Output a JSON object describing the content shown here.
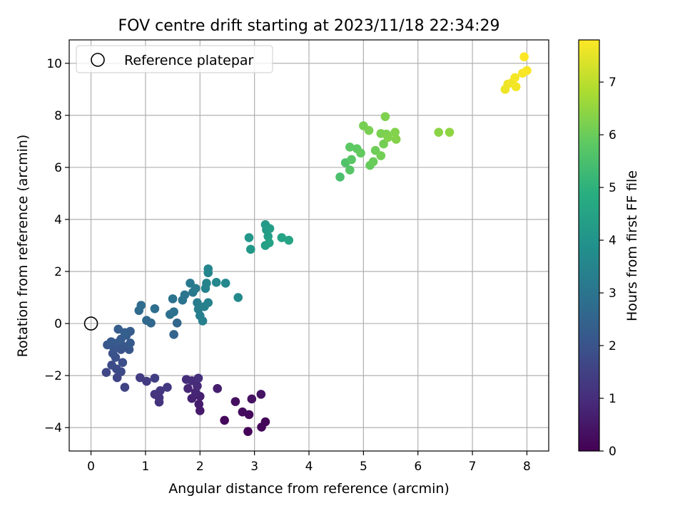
{
  "chart_data": {
    "type": "scatter",
    "title": "FOV centre drift starting at 2023/11/18 22:34:29",
    "xlabel": "Angular distance from reference (arcmin)",
    "ylabel": "Rotation from reference (arcmin)",
    "xlim": [
      -0.4,
      8.4
    ],
    "ylim": [
      -4.9,
      10.9
    ],
    "xticks": [
      "0",
      "1",
      "2",
      "3",
      "4",
      "5",
      "6",
      "7",
      "8"
    ],
    "yticks": [
      "-4",
      "-2",
      "0",
      "2",
      "4",
      "6",
      "8",
      "10"
    ],
    "grid": true,
    "legend": {
      "placement": "upper-left",
      "entries": [
        "Reference platepar"
      ]
    },
    "reference_point": {
      "x": 0,
      "y": 0,
      "label": "Reference platepar"
    },
    "colorbar": {
      "label": "Hours from first FF file",
      "range": [
        0,
        7.8
      ],
      "ticks": [
        "0",
        "1",
        "2",
        "3",
        "4",
        "5",
        "6",
        "7"
      ],
      "colormap": "viridis"
    },
    "points": [
      {
        "x": 2.88,
        "y": -4.15,
        "h": 0.05
      },
      {
        "x": 3.13,
        "y": -3.98,
        "h": 0.1
      },
      {
        "x": 3.2,
        "y": -3.78,
        "h": 0.12
      },
      {
        "x": 2.45,
        "y": -3.72,
        "h": 0.15
      },
      {
        "x": 2.9,
        "y": -3.5,
        "h": 0.2
      },
      {
        "x": 2.78,
        "y": -3.4,
        "h": 0.25
      },
      {
        "x": 2.65,
        "y": -3.0,
        "h": 0.3
      },
      {
        "x": 2.95,
        "y": -2.9,
        "h": 0.35
      },
      {
        "x": 3.12,
        "y": -2.72,
        "h": 0.4
      },
      {
        "x": 2.0,
        "y": -3.35,
        "h": 0.55
      },
      {
        "x": 1.98,
        "y": -3.1,
        "h": 0.6
      },
      {
        "x": 2.32,
        "y": -2.5,
        "h": 0.65
      },
      {
        "x": 2.0,
        "y": -2.8,
        "h": 0.7
      },
      {
        "x": 1.85,
        "y": -2.88,
        "h": 0.75
      },
      {
        "x": 1.92,
        "y": -2.65,
        "h": 0.8
      },
      {
        "x": 1.78,
        "y": -2.5,
        "h": 0.85
      },
      {
        "x": 1.95,
        "y": -2.4,
        "h": 0.9
      },
      {
        "x": 1.85,
        "y": -2.2,
        "h": 0.95
      },
      {
        "x": 1.75,
        "y": -2.15,
        "h": 1.0
      },
      {
        "x": 1.97,
        "y": -2.1,
        "h": 1.05
      },
      {
        "x": 1.25,
        "y": -3.02,
        "h": 1.1
      },
      {
        "x": 1.25,
        "y": -2.85,
        "h": 1.15
      },
      {
        "x": 1.17,
        "y": -2.72,
        "h": 1.2
      },
      {
        "x": 1.27,
        "y": -2.58,
        "h": 1.25
      },
      {
        "x": 1.4,
        "y": -2.45,
        "h": 1.3
      },
      {
        "x": 1.02,
        "y": -2.22,
        "h": 1.35
      },
      {
        "x": 0.9,
        "y": -2.08,
        "h": 1.4
      },
      {
        "x": 1.17,
        "y": -2.1,
        "h": 1.45
      },
      {
        "x": 0.62,
        "y": -2.45,
        "h": 1.55
      },
      {
        "x": 0.48,
        "y": -2.08,
        "h": 1.6
      },
      {
        "x": 0.28,
        "y": -1.88,
        "h": 1.65
      },
      {
        "x": 0.55,
        "y": -1.85,
        "h": 1.7
      },
      {
        "x": 0.47,
        "y": -1.75,
        "h": 1.75
      },
      {
        "x": 0.38,
        "y": -1.6,
        "h": 1.8
      },
      {
        "x": 0.58,
        "y": -1.5,
        "h": 1.85
      },
      {
        "x": 0.45,
        "y": -1.3,
        "h": 1.9
      },
      {
        "x": 0.4,
        "y": -1.15,
        "h": 1.95
      },
      {
        "x": 0.55,
        "y": -1.0,
        "h": 2.0
      },
      {
        "x": 0.42,
        "y": -0.95,
        "h": 2.05
      },
      {
        "x": 0.7,
        "y": -1.0,
        "h": 2.08
      },
      {
        "x": 0.6,
        "y": -0.88,
        "h": 2.1
      },
      {
        "x": 0.3,
        "y": -0.82,
        "h": 2.12
      },
      {
        "x": 0.48,
        "y": -0.75,
        "h": 2.15
      },
      {
        "x": 0.37,
        "y": -0.7,
        "h": 2.18
      },
      {
        "x": 0.72,
        "y": -0.75,
        "h": 2.2
      },
      {
        "x": 0.55,
        "y": -0.6,
        "h": 2.22
      },
      {
        "x": 0.65,
        "y": -0.45,
        "h": 2.25
      },
      {
        "x": 0.72,
        "y": -0.3,
        "h": 2.28
      },
      {
        "x": 0.5,
        "y": -0.22,
        "h": 2.3
      },
      {
        "x": 0.62,
        "y": -0.35,
        "h": 2.35
      },
      {
        "x": 1.52,
        "y": -0.42,
        "h": 2.5
      },
      {
        "x": 1.58,
        "y": 0.02,
        "h": 2.55
      },
      {
        "x": 1.1,
        "y": 0.02,
        "h": 2.6
      },
      {
        "x": 1.02,
        "y": 0.12,
        "h": 2.65
      },
      {
        "x": 0.88,
        "y": 0.5,
        "h": 2.7
      },
      {
        "x": 0.92,
        "y": 0.7,
        "h": 2.75
      },
      {
        "x": 1.17,
        "y": 0.57,
        "h": 2.8
      },
      {
        "x": 1.45,
        "y": 0.35,
        "h": 2.85
      },
      {
        "x": 1.52,
        "y": 0.45,
        "h": 2.9
      },
      {
        "x": 1.5,
        "y": 0.95,
        "h": 2.95
      },
      {
        "x": 1.68,
        "y": 0.9,
        "h": 3.0
      },
      {
        "x": 1.72,
        "y": 1.1,
        "h": 3.05
      },
      {
        "x": 1.87,
        "y": 1.2,
        "h": 3.1
      },
      {
        "x": 1.82,
        "y": 1.55,
        "h": 3.15
      },
      {
        "x": 1.92,
        "y": 1.35,
        "h": 3.2
      },
      {
        "x": 1.95,
        "y": 0.8,
        "h": 3.25
      },
      {
        "x": 1.97,
        "y": 0.55,
        "h": 3.3
      },
      {
        "x": 2.0,
        "y": 0.3,
        "h": 3.33
      },
      {
        "x": 2.05,
        "y": 0.1,
        "h": 3.36
      },
      {
        "x": 2.08,
        "y": 0.65,
        "h": 3.4
      },
      {
        "x": 2.15,
        "y": 0.8,
        "h": 3.43
      },
      {
        "x": 2.1,
        "y": 1.35,
        "h": 3.46
      },
      {
        "x": 2.12,
        "y": 1.55,
        "h": 3.5
      },
      {
        "x": 2.15,
        "y": 1.95,
        "h": 3.53
      },
      {
        "x": 2.15,
        "y": 2.1,
        "h": 3.56
      },
      {
        "x": 2.3,
        "y": 1.58,
        "h": 3.6
      },
      {
        "x": 2.47,
        "y": 1.55,
        "h": 3.63
      },
      {
        "x": 2.7,
        "y": 1.0,
        "h": 3.66
      },
      {
        "x": 2.9,
        "y": 3.3,
        "h": 4.1
      },
      {
        "x": 2.93,
        "y": 2.85,
        "h": 4.15
      },
      {
        "x": 3.2,
        "y": 3.8,
        "h": 4.2
      },
      {
        "x": 3.22,
        "y": 3.6,
        "h": 4.25
      },
      {
        "x": 3.28,
        "y": 3.65,
        "h": 4.3
      },
      {
        "x": 3.25,
        "y": 3.35,
        "h": 4.35
      },
      {
        "x": 3.2,
        "y": 3.0,
        "h": 4.4
      },
      {
        "x": 3.27,
        "y": 3.1,
        "h": 4.45
      },
      {
        "x": 3.5,
        "y": 3.3,
        "h": 4.5
      },
      {
        "x": 3.63,
        "y": 3.2,
        "h": 4.55
      },
      {
        "x": 4.57,
        "y": 5.63,
        "h": 5.5
      },
      {
        "x": 4.67,
        "y": 6.18,
        "h": 5.6
      },
      {
        "x": 4.75,
        "y": 5.9,
        "h": 5.7
      },
      {
        "x": 4.78,
        "y": 6.3,
        "h": 5.75
      },
      {
        "x": 4.75,
        "y": 6.78,
        "h": 5.8
      },
      {
        "x": 4.88,
        "y": 6.72,
        "h": 5.85
      },
      {
        "x": 4.95,
        "y": 6.55,
        "h": 5.9
      },
      {
        "x": 5.12,
        "y": 6.08,
        "h": 5.95
      },
      {
        "x": 5.18,
        "y": 6.22,
        "h": 6.0
      },
      {
        "x": 5.22,
        "y": 6.65,
        "h": 6.05
      },
      {
        "x": 5.32,
        "y": 6.45,
        "h": 6.1
      },
      {
        "x": 5.37,
        "y": 6.9,
        "h": 6.12
      },
      {
        "x": 5.0,
        "y": 7.6,
        "h": 6.15
      },
      {
        "x": 5.1,
        "y": 7.42,
        "h": 6.18
      },
      {
        "x": 5.32,
        "y": 7.3,
        "h": 6.2
      },
      {
        "x": 5.42,
        "y": 7.28,
        "h": 6.22
      },
      {
        "x": 5.4,
        "y": 7.95,
        "h": 6.25
      },
      {
        "x": 5.45,
        "y": 7.15,
        "h": 6.28
      },
      {
        "x": 5.58,
        "y": 7.35,
        "h": 6.3
      },
      {
        "x": 5.6,
        "y": 7.08,
        "h": 6.32
      },
      {
        "x": 6.38,
        "y": 7.35,
        "h": 6.4
      },
      {
        "x": 6.58,
        "y": 7.35,
        "h": 6.45
      },
      {
        "x": 7.6,
        "y": 9.0,
        "h": 7.6
      },
      {
        "x": 7.65,
        "y": 9.2,
        "h": 7.62
      },
      {
        "x": 7.72,
        "y": 9.25,
        "h": 7.65
      },
      {
        "x": 7.8,
        "y": 9.1,
        "h": 7.67
      },
      {
        "x": 7.78,
        "y": 9.45,
        "h": 7.7
      },
      {
        "x": 7.92,
        "y": 9.62,
        "h": 7.72
      },
      {
        "x": 8.0,
        "y": 9.72,
        "h": 7.75
      },
      {
        "x": 7.95,
        "y": 10.25,
        "h": 7.78
      }
    ]
  }
}
